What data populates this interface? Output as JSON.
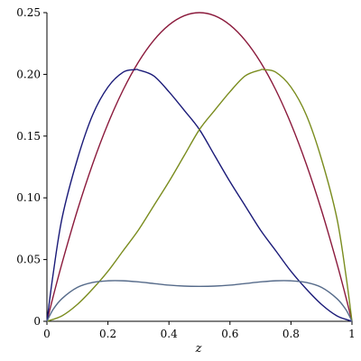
{
  "chart_data": {
    "type": "line",
    "title": "",
    "xlabel": "z",
    "ylabel": "",
    "xlim": [
      0,
      1
    ],
    "ylim": [
      0,
      0.25
    ],
    "grid": false,
    "legend": "none",
    "x_ticks": [
      "0",
      "0.2",
      "0.4",
      "0.6",
      "0.8",
      "1"
    ],
    "y_ticks": [
      "0",
      "0.05",
      "0.10",
      "0.15",
      "0.20",
      "0.25"
    ],
    "x_tick_values": [
      0,
      0.2,
      0.4,
      0.6,
      0.8,
      1
    ],
    "y_tick_values": [
      0,
      0.05,
      0.1,
      0.15,
      0.2,
      0.25
    ],
    "series": [
      {
        "color": "#8b1a3c",
        "x": [
          0,
          0.02,
          0.05,
          0.1,
          0.15,
          0.2,
          0.25,
          0.3,
          0.35,
          0.4,
          0.45,
          0.5,
          0.55,
          0.6,
          0.65,
          0.7,
          0.75,
          0.8,
          0.85,
          0.9,
          0.95,
          0.98,
          1
        ],
        "y": [
          0,
          0.0196,
          0.0475,
          0.09,
          0.1275,
          0.16,
          0.1875,
          0.21,
          0.2275,
          0.24,
          0.2475,
          0.25,
          0.2475,
          0.24,
          0.2275,
          0.21,
          0.1875,
          0.16,
          0.1275,
          0.09,
          0.0475,
          0.0196,
          0
        ]
      },
      {
        "color": "#1a1a78",
        "x": [
          0,
          0.02,
          0.05,
          0.1,
          0.15,
          0.2,
          0.25,
          0.289,
          0.3,
          0.35,
          0.4,
          0.45,
          0.5,
          0.55,
          0.6,
          0.65,
          0.7,
          0.75,
          0.8,
          0.85,
          0.9,
          0.95,
          1
        ],
        "y": [
          0,
          0.0376,
          0.0841,
          0.1314,
          0.1672,
          0.1897,
          0.2018,
          0.2038,
          0.2036,
          0.1988,
          0.1859,
          0.1709,
          0.1553,
          0.1342,
          0.1131,
          0.0935,
          0.0739,
          0.0572,
          0.0405,
          0.0262,
          0.0137,
          0.0045,
          0
        ]
      },
      {
        "color": "#7a8c1e",
        "x": [
          0,
          0.05,
          0.1,
          0.15,
          0.2,
          0.25,
          0.3,
          0.35,
          0.4,
          0.45,
          0.5,
          0.55,
          0.6,
          0.65,
          0.7,
          0.711,
          0.75,
          0.8,
          0.85,
          0.9,
          0.95,
          0.98,
          1
        ],
        "y": [
          0,
          0.0045,
          0.0137,
          0.0262,
          0.0405,
          0.0572,
          0.0739,
          0.0935,
          0.1131,
          0.1342,
          0.1553,
          0.1709,
          0.1859,
          0.1988,
          0.2036,
          0.2038,
          0.2018,
          0.1897,
          0.1672,
          0.1314,
          0.0841,
          0.0376,
          0
        ]
      },
      {
        "color": "#566b8a",
        "x": [
          0,
          0.02,
          0.05,
          0.1,
          0.15,
          0.2,
          0.25,
          0.3,
          0.35,
          0.4,
          0.45,
          0.5,
          0.55,
          0.6,
          0.65,
          0.7,
          0.75,
          0.8,
          0.85,
          0.9,
          0.95,
          0.98,
          1
        ],
        "y": [
          0,
          0.0095,
          0.0185,
          0.0275,
          0.0315,
          0.0328,
          0.0328,
          0.0319,
          0.0306,
          0.0293,
          0.0285,
          0.0283,
          0.0285,
          0.0293,
          0.0306,
          0.0319,
          0.0328,
          0.0328,
          0.0315,
          0.0275,
          0.0185,
          0.0095,
          0
        ]
      }
    ]
  }
}
